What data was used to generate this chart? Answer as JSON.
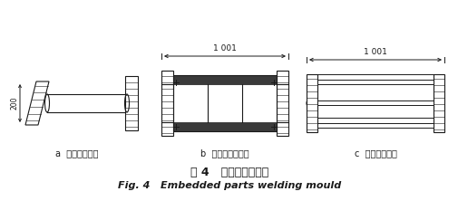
{
  "title_cn": "图 4   预埋件焊接模具",
  "title_en": "Fig. 4   Embedded parts welding mould",
  "label_a": "a  加载孔焊接前",
  "label_b": "b  加载孔焊接模具",
  "label_c": "c  加载孔焊接后",
  "dim_1001": "1 001",
  "dim_200": "200",
  "bg_color": "#ffffff",
  "line_color": "#1a1a1a",
  "fig_width": 5.06,
  "fig_height": 2.22,
  "dpi": 100
}
